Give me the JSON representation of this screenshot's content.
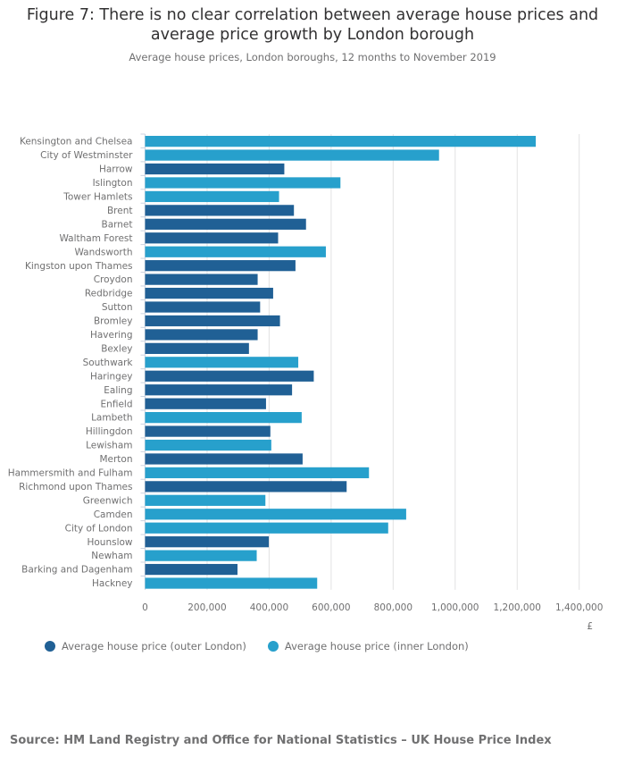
{
  "chart_data": {
    "type": "bar",
    "orientation": "horizontal",
    "title": "Figure 7: There is no clear correlation between average house prices and average price growth by London borough",
    "subtitle": "Average house prices, London boroughs, 12 months to November 2019",
    "xlabel": "£",
    "ylabel": "",
    "xlim": [
      0,
      1400000
    ],
    "xticks": [
      "0",
      "200,000",
      "400,000",
      "600,000",
      "800,000",
      "1,000,000",
      "1,200,000",
      "1,400,000"
    ],
    "xtick_values": [
      0,
      200000,
      400000,
      600000,
      800000,
      1000000,
      1200000,
      1400000
    ],
    "grid": true,
    "legend_position": "bottom-left",
    "series": [
      {
        "name": "Average house price (outer London)",
        "color": "#206095"
      },
      {
        "name": "Average house price (inner London)",
        "color": "#27a0cc"
      }
    ],
    "categories": [
      "Kensington and Chelsea",
      "City of Westminster",
      "Harrow",
      "Islington",
      "Tower Hamlets",
      "Brent",
      "Barnet",
      "Waltham Forest",
      "Wandsworth",
      "Kingston upon Thames",
      "Croydon",
      "Redbridge",
      "Sutton",
      "Bromley",
      "Havering",
      "Bexley",
      "Southwark",
      "Haringey",
      "Ealing",
      "Enfield",
      "Lambeth",
      "Hillingdon",
      "Lewisham",
      "Merton",
      "Hammersmith and Fulham",
      "Richmond upon Thames",
      "Greenwich",
      "Camden",
      "City of London",
      "Hounslow",
      "Newham",
      "Barking and Dagenham",
      "Hackney"
    ],
    "values": [
      1260000,
      948000,
      449000,
      630000,
      432000,
      480000,
      519000,
      429000,
      583000,
      485000,
      363000,
      413000,
      371000,
      435000,
      363000,
      335000,
      494000,
      544000,
      474000,
      390000,
      505000,
      404000,
      407000,
      508000,
      722000,
      650000,
      388000,
      842000,
      784000,
      399000,
      360000,
      298000,
      555000
    ],
    "group": [
      1,
      1,
      0,
      1,
      1,
      0,
      0,
      0,
      1,
      0,
      0,
      0,
      0,
      0,
      0,
      0,
      1,
      0,
      0,
      0,
      1,
      0,
      1,
      0,
      1,
      0,
      1,
      1,
      1,
      0,
      1,
      0,
      1
    ]
  },
  "source": "Source: HM Land Registry and Office for National Statistics – UK House Price Index"
}
